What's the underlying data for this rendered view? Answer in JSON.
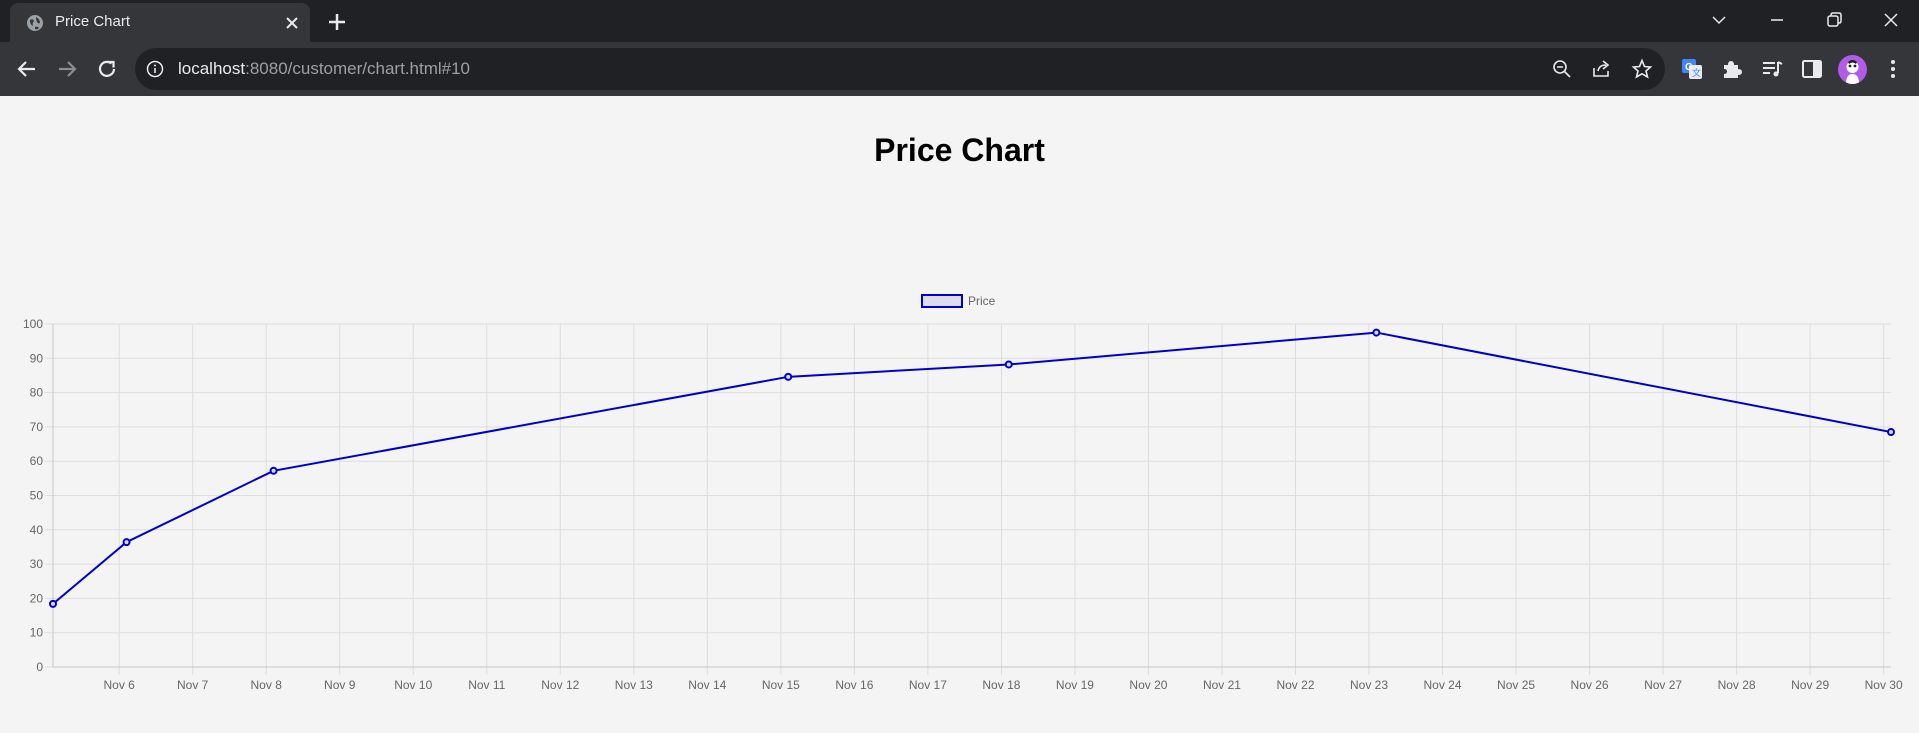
{
  "browser": {
    "tab_title": "Price Chart",
    "url_host": "localhost",
    "url_rest": ":8080/customer/chart.html#10"
  },
  "icons": {
    "favicon": "globe-icon",
    "tab_close": "close-icon",
    "new_tab": "plus-icon",
    "back": "arrow-left-icon",
    "forward": "arrow-right-icon",
    "reload": "reload-icon",
    "site_info": "info-icon",
    "zoom": "zoom-out-icon",
    "share": "share-icon",
    "bookmark": "star-icon",
    "translate": "translate-icon",
    "extensions": "puzzle-icon",
    "media": "media-queue-icon",
    "side_panel": "side-panel-icon",
    "profile": "avatar",
    "menu": "kebab-menu-icon",
    "tab_search": "chevron-down-icon",
    "minimize": "minimize-icon",
    "restore": "restore-icon",
    "close_window": "close-icon"
  },
  "page": {
    "title": "Price Chart"
  },
  "chart_data": {
    "type": "line",
    "title": "Price Chart",
    "x_axis_type": "time",
    "x_range": [
      "2023-11-05",
      "2023-11-30"
    ],
    "x_tick_labels": [
      "Nov 6",
      "Nov 7",
      "Nov 8",
      "Nov 9",
      "Nov 10",
      "Nov 11",
      "Nov 12",
      "Nov 13",
      "Nov 14",
      "Nov 15",
      "Nov 16",
      "Nov 17",
      "Nov 18",
      "Nov 19",
      "Nov 20",
      "Nov 21",
      "Nov 22",
      "Nov 23",
      "Nov 24",
      "Nov 25",
      "Nov 26",
      "Nov 27",
      "Nov 28",
      "Nov 29",
      "Nov 30"
    ],
    "ylim": [
      0,
      100
    ],
    "y_ticks": [
      0,
      10,
      20,
      30,
      40,
      50,
      60,
      70,
      80,
      90,
      100
    ],
    "grid": true,
    "legend_position": "top",
    "series": [
      {
        "name": "Price",
        "color": "#0000cc",
        "fill_color": "#dcdcef",
        "points": [
          {
            "x": "2023-11-05",
            "y": 18.4
          },
          {
            "x": "2023-11-06",
            "y": 36.4
          },
          {
            "x": "2023-11-08",
            "y": 57.2
          },
          {
            "x": "2023-11-15",
            "y": 84.6
          },
          {
            "x": "2023-11-18",
            "y": 88.2
          },
          {
            "x": "2023-11-23",
            "y": 97.5
          },
          {
            "x": "2023-11-30",
            "y": 68.5
          }
        ]
      }
    ]
  }
}
